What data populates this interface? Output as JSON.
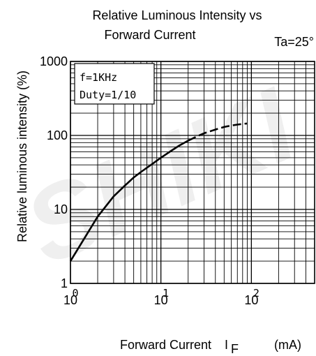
{
  "chart_data": {
    "type": "line",
    "title_line1": "Relative Luminous Intensity vs",
    "title_line2": "Forward Current",
    "condition": "Ta=25°",
    "ylabel": "Relative luminous intensity  (%)",
    "xlabel_main": "Forward Current",
    "xlabel_symbol": "I",
    "xlabel_subscript": "F",
    "xlabel_unit": "(mA)",
    "legend_box_lines": [
      "f=1KHz",
      "Duty=1/10"
    ],
    "x_scale": "log",
    "y_scale": "log",
    "xlim": [
      1,
      500
    ],
    "ylim": [
      1,
      1000
    ],
    "x_ticks": [
      {
        "value": 1,
        "base": "10",
        "exp": "0"
      },
      {
        "value": 10,
        "base": "10",
        "exp": "1"
      },
      {
        "value": 100,
        "base": "10",
        "exp": "2"
      }
    ],
    "y_ticks": [
      {
        "value": 1,
        "label": "1"
      },
      {
        "value": 10,
        "label": "10"
      },
      {
        "value": 100,
        "label": "100"
      },
      {
        "value": 1000,
        "label": "1000"
      }
    ],
    "grid": true,
    "series": [
      {
        "style": "solid",
        "x": [
          1,
          1.5,
          2,
          3,
          4,
          5,
          6,
          8,
          10,
          13,
          16,
          20
        ],
        "y": [
          2,
          4.5,
          8,
          15,
          21,
          27,
          32,
          41,
          50,
          62,
          73,
          85
        ]
      },
      {
        "style": "dashed",
        "x": [
          20,
          25,
          30,
          40,
          50,
          60,
          70,
          80,
          90
        ],
        "y": [
          85,
          97,
          107,
          120,
          130,
          136,
          140,
          143,
          145
        ]
      }
    ],
    "watermark": "SHIKI"
  }
}
